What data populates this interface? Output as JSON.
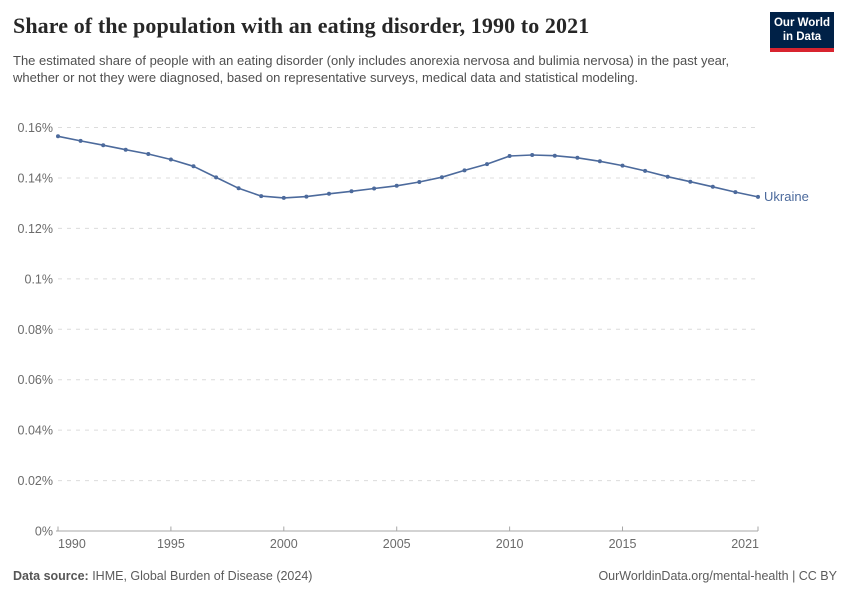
{
  "header": {
    "title": "Share of the population with an eating disorder, 1990 to 2021",
    "subtitle": "The estimated share of people with an eating disorder (only includes anorexia nervosa and bulimia nervosa) in the past year, whether or not they were diagnosed, based on representative surveys, medical data and statistical modeling.",
    "logo": {
      "line1": "Our World",
      "line2": "in Data",
      "bg_color": "#002147",
      "stripe_color": "#d8242f"
    }
  },
  "chart_data": {
    "type": "line",
    "title": "Share of the population with an eating disorder, 1990 to 2021",
    "entity": "Ukraine",
    "unit": "%",
    "x": [
      1990,
      1991,
      1992,
      1993,
      1994,
      1995,
      1996,
      1997,
      1998,
      1999,
      2000,
      2001,
      2002,
      2003,
      2004,
      2005,
      2006,
      2007,
      2008,
      2009,
      2010,
      2011,
      2012,
      2013,
      2014,
      2015,
      2016,
      2017,
      2018,
      2019,
      2020,
      2021
    ],
    "values": [
      0.1565,
      0.1547,
      0.153,
      0.1512,
      0.1495,
      0.1473,
      0.1446,
      0.1402,
      0.1359,
      0.1328,
      0.1321,
      0.1326,
      0.1337,
      0.1347,
      0.1358,
      0.1369,
      0.1384,
      0.1403,
      0.143,
      0.1455,
      0.1487,
      0.1491,
      0.1488,
      0.148,
      0.1466,
      0.1449,
      0.1428,
      0.1405,
      0.1385,
      0.1365,
      0.1344,
      0.1325
    ],
    "ylim": [
      0,
      0.16
    ],
    "yticks": [
      0,
      0.02,
      0.04,
      0.06,
      0.08,
      0.1,
      0.12,
      0.14,
      0.16
    ],
    "ytick_labels": [
      "0%",
      "0.02%",
      "0.04%",
      "0.06%",
      "0.08%",
      "0.1%",
      "0.12%",
      "0.14%",
      "0.16%"
    ],
    "xticks": [
      1990,
      1995,
      2000,
      2005,
      2010,
      2015,
      2021
    ],
    "xtick_labels": [
      "1990",
      "1995",
      "2000",
      "2005",
      "2010",
      "2015",
      "2021"
    ],
    "line_color": "#4c6a9c",
    "grid": "dashed",
    "grid_color": "#dcdcdc",
    "axis_color": "#a7a7a7",
    "tick_label_color": "#6b6b6b",
    "legend_position": "end-of-line"
  },
  "footer": {
    "source_label": "Data source:",
    "source_text": " IHME, Global Burden of Disease (2024)",
    "right_text": "OurWorldinData.org/mental-health | CC BY"
  }
}
